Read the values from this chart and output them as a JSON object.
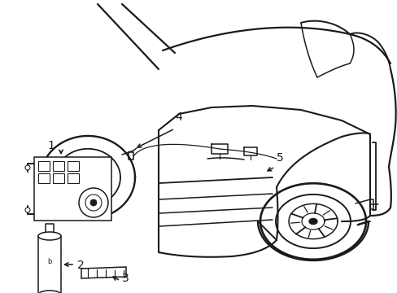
{
  "bg_color": "#ffffff",
  "line_color": "#1a1a1a",
  "lw": 1.1,
  "label_fontsize": 10,
  "figsize": [
    4.89,
    3.6
  ],
  "dpi": 100
}
